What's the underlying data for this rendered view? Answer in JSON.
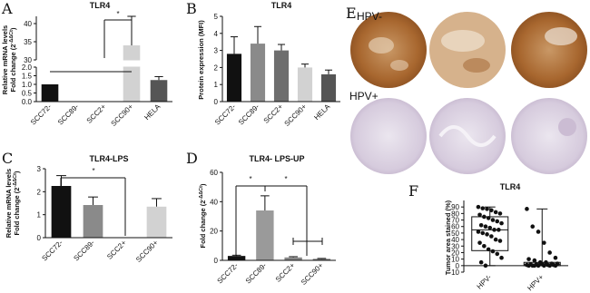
{
  "chart_data": [
    {
      "type": "bar",
      "panel": "A",
      "title": "TLR4",
      "ylabel": [
        "Relative mRNA levels",
        "Fold change (2"
      ],
      "ylabel_sup": "-ΔΔCt",
      "ylabel_end": ")",
      "categories": [
        "SCC72-",
        "SCC89-",
        "SCC2+",
        "SCC90+",
        "HELA"
      ],
      "values": [
        1.0,
        0,
        0,
        34,
        1.25
      ],
      "errors": [
        null,
        null,
        null,
        8,
        0.2
      ],
      "colors": [
        "#111111",
        "#888888",
        "#777777",
        "#d2d2d2",
        "#555555"
      ],
      "y_segments": [
        {
          "ylim": [
            0,
            2
          ],
          "yticks": [
            {
              "value": 0,
              "label": "0.0"
            },
            {
              "value": 0.5,
              "label": "0.5"
            },
            {
              "value": 1,
              "label": "1.0"
            },
            {
              "value": 1.5,
              "label": "1.5"
            },
            {
              "value": 2,
              "label": "2.0"
            }
          ]
        },
        {
          "ylim": [
            30,
            42
          ],
          "yticks": [
            30,
            35,
            40
          ]
        }
      ],
      "significance": [
        "*"
      ]
    },
    {
      "type": "bar",
      "panel": "B",
      "title": "TLR4",
      "ylabel": [
        "Protein expression (MFI)"
      ],
      "categories": [
        "SCC72-",
        "SCC89-",
        "SCC2+",
        "SCC90+",
        "HELA"
      ],
      "values": [
        2.8,
        3.4,
        3.0,
        2.0,
        1.6
      ],
      "errors": [
        1.0,
        1.0,
        0.35,
        0.2,
        0.25
      ],
      "colors": [
        "#111111",
        "#8a8a8a",
        "#6e6e6e",
        "#d2d2d2",
        "#555555"
      ],
      "ylim": [
        0,
        5
      ],
      "yticks": [
        0,
        1,
        2,
        3,
        4,
        5
      ],
      "significance": []
    },
    {
      "type": "bar",
      "panel": "C",
      "title": "TLR4-LPS",
      "ylabel": [
        "Relative mRNA levels",
        "Fold change (2"
      ],
      "ylabel_sup": "-ΔΔCt",
      "ylabel_end": ")",
      "categories": [
        "SCC72-",
        "SCC89-",
        "SCC2+",
        "SCC90+"
      ],
      "values": [
        2.25,
        1.42,
        0,
        1.35
      ],
      "errors": [
        0.45,
        0.35,
        null,
        0.35
      ],
      "colors": [
        "#111111",
        "#8a8a8a",
        "#777777",
        "#d2d2d2"
      ],
      "ylim": [
        0,
        3
      ],
      "yticks": [
        0,
        1,
        2,
        3
      ],
      "significance": [
        "*"
      ]
    },
    {
      "type": "bar",
      "panel": "D",
      "title": "TLR4- LPS-UP",
      "ylabel": [
        "Fold change (2"
      ],
      "ylabel_sup": "-ΔΔCt",
      "ylabel_end": ")",
      "categories": [
        "SCC72-",
        "SCC89-",
        "SCC2+",
        "SCC90+"
      ],
      "values": [
        3,
        34,
        2,
        1
      ],
      "errors": [
        0.5,
        10,
        0.5,
        0.3
      ],
      "colors": [
        "#111111",
        "#9a9a9a",
        "#888888",
        "#777777"
      ],
      "ylim": [
        0,
        60
      ],
      "yticks": [
        0,
        20,
        40,
        60
      ],
      "significance": [
        "*",
        "*"
      ]
    },
    {
      "type": "box",
      "panel": "F",
      "title": "TLR4",
      "ylabel": [
        "Tumor area stained (%)"
      ],
      "categories": [
        "HPV-",
        "HPV+"
      ],
      "boxes": [
        {
          "min": 0,
          "q1": 23,
          "median": 55,
          "q3": 75,
          "max": 90
        },
        {
          "min": 0,
          "q1": 0,
          "median": 2,
          "q3": 5,
          "max": 87
        }
      ],
      "points": [
        [
          90,
          88,
          87,
          85,
          82,
          80,
          78,
          75,
          73,
          70,
          68,
          65,
          62,
          60,
          58,
          55,
          55,
          52,
          50,
          48,
          45,
          40,
          38,
          35,
          30,
          25,
          22,
          18,
          12,
          5,
          0
        ],
        [
          87,
          60,
          52,
          35,
          20,
          12,
          10,
          8,
          5,
          5,
          3,
          3,
          2,
          2,
          2,
          1,
          1,
          1,
          0,
          0,
          0,
          0,
          0,
          0,
          0
        ]
      ],
      "ylim": [
        -10,
        100
      ],
      "yticks": [
        -10,
        0,
        10,
        20,
        30,
        40,
        50,
        60,
        70,
        80,
        90
      ],
      "significance": []
    }
  ],
  "figure_e": {
    "panel": "E",
    "groups": [
      "HPV-",
      "HPV+"
    ]
  }
}
